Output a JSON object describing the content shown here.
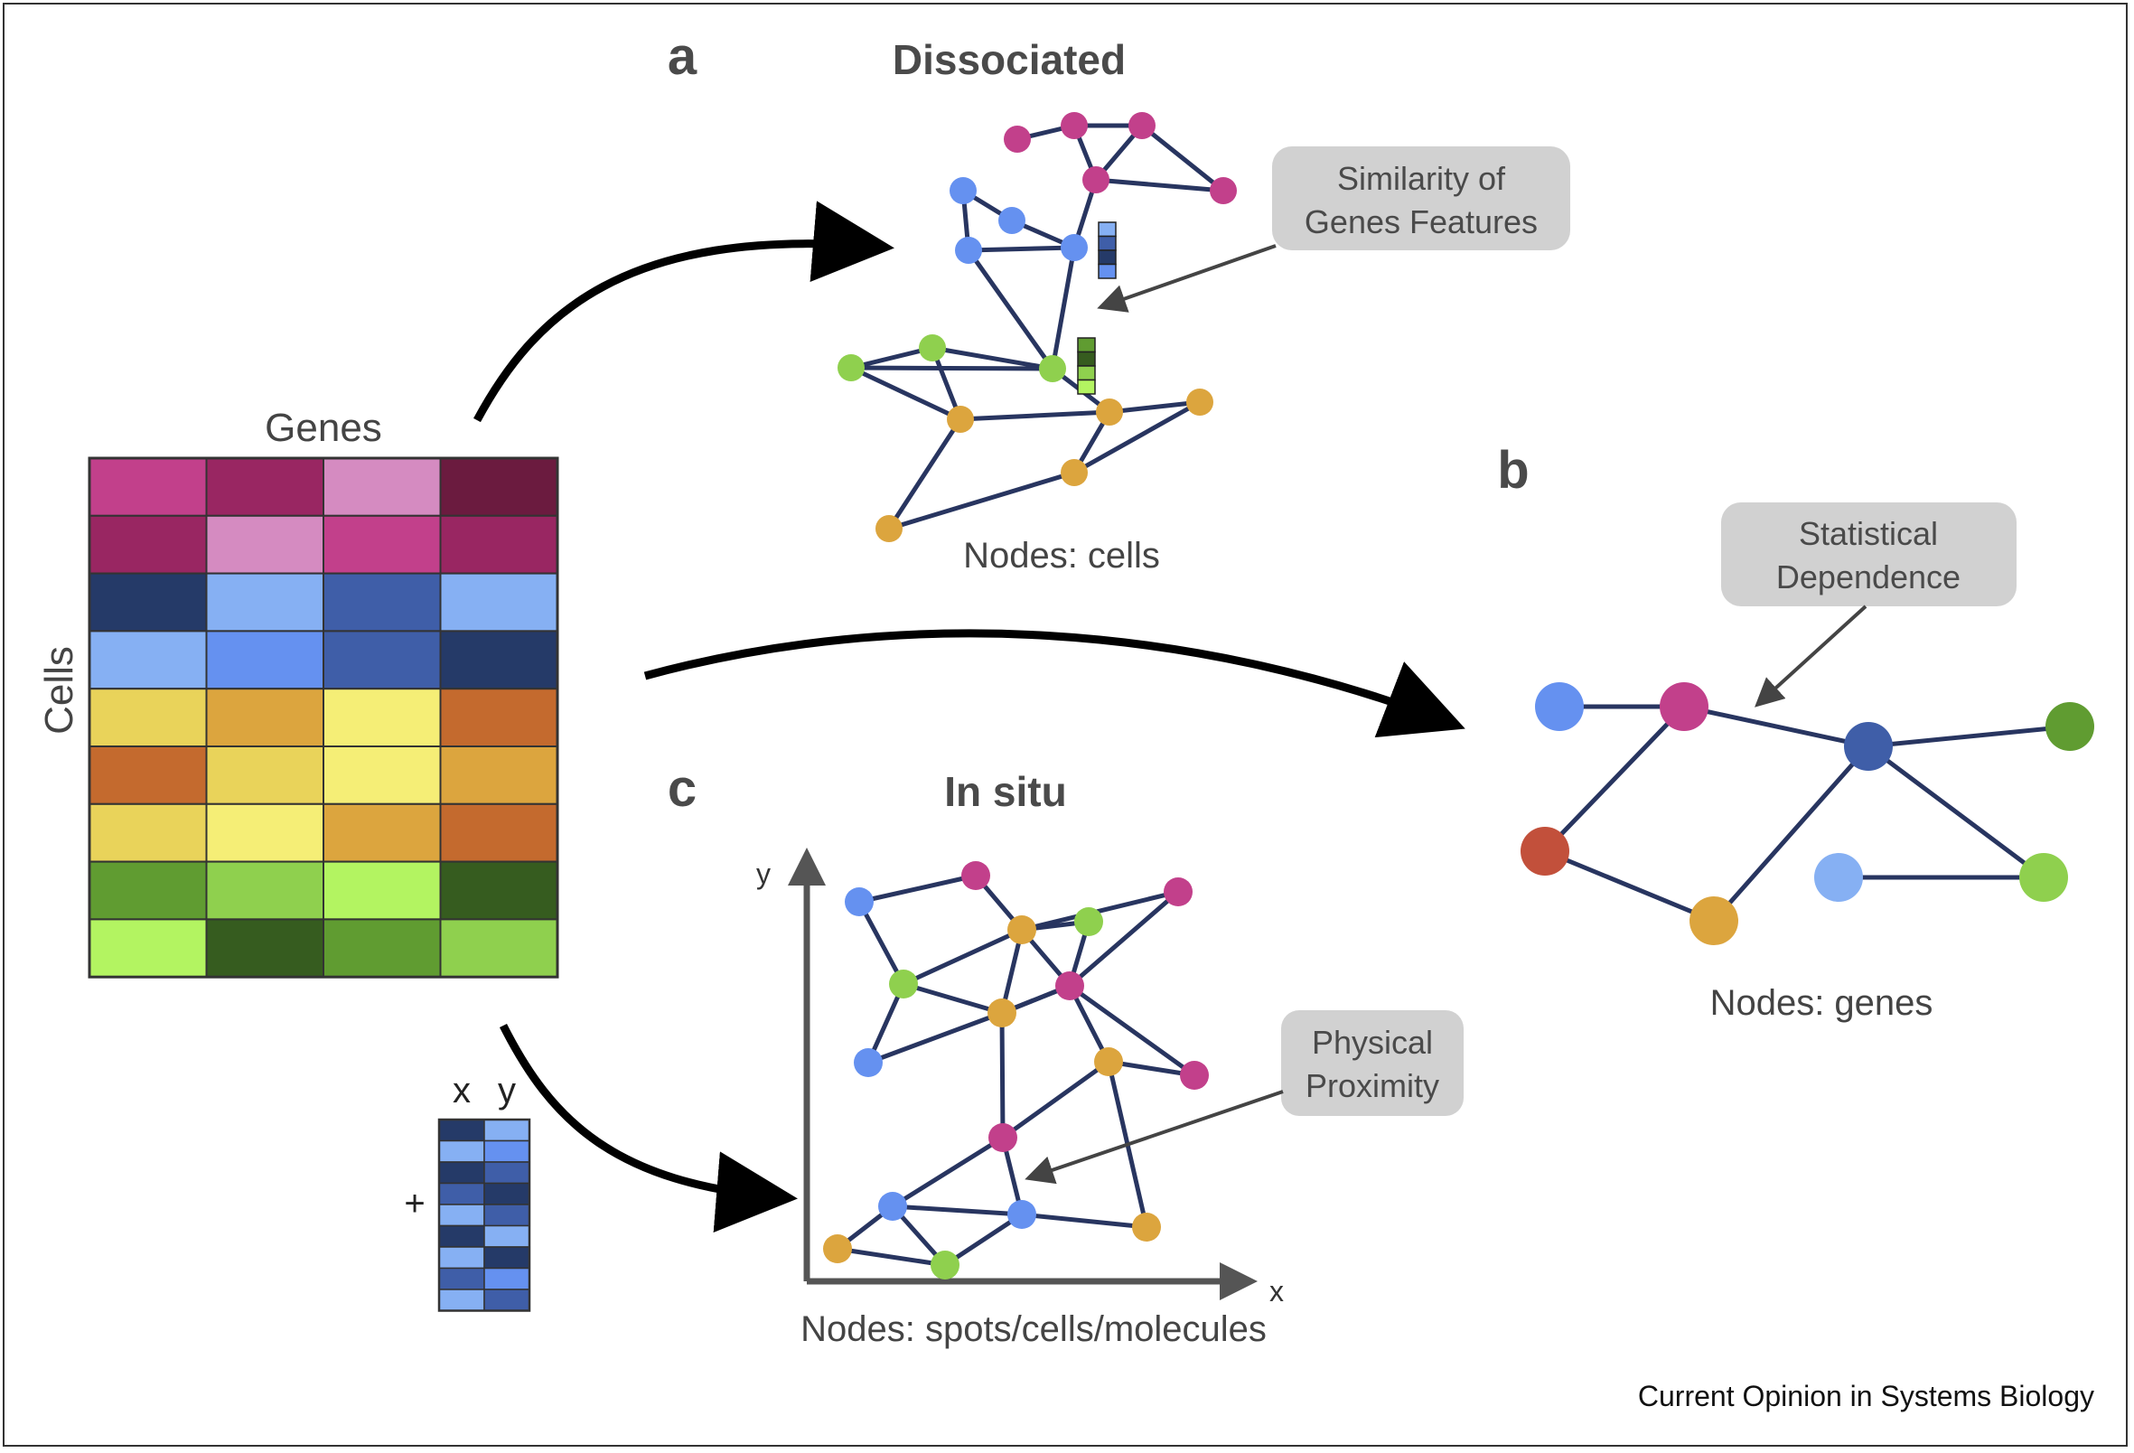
{
  "figure": {
    "credit": "Current Opinion in Systems Biology"
  },
  "matrix": {
    "genes_label": "Genes",
    "cells_label": "Cells",
    "rows": [
      [
        "#c2408b",
        "#992662",
        "#d58bc1",
        "#6b1b3f"
      ],
      [
        "#992662",
        "#d58bc1",
        "#c2408b",
        "#992662"
      ],
      [
        "#253a68",
        "#86b0f3",
        "#3f5ea8",
        "#86b0f3"
      ],
      [
        "#86b0f3",
        "#6591f0",
        "#3f5ea8",
        "#253a68"
      ],
      [
        "#e9d35a",
        "#dca53e",
        "#f5ee76",
        "#c46a2e"
      ],
      [
        "#c46a2e",
        "#e9d35a",
        "#f5ee76",
        "#dca53e"
      ],
      [
        "#e9d35a",
        "#f5ee76",
        "#dca53e",
        "#c46a2e"
      ],
      [
        "#609c31",
        "#8fd04e",
        "#b3f461",
        "#365c1f"
      ],
      [
        "#b3f461",
        "#365c1f",
        "#609c31",
        "#8fd04e"
      ]
    ],
    "xy_header": [
      "x",
      "y"
    ],
    "plus": "+",
    "xy_rows": [
      [
        "#253a68",
        "#86b0f3"
      ],
      [
        "#86b0f3",
        "#6591f0"
      ],
      [
        "#253a68",
        "#3f5ea8"
      ],
      [
        "#3f5ea8",
        "#253a68"
      ],
      [
        "#86b0f3",
        "#3f5ea8"
      ],
      [
        "#253a68",
        "#86b0f3"
      ],
      [
        "#86b0f3",
        "#253a68"
      ],
      [
        "#3f5ea8",
        "#6591f0"
      ],
      [
        "#86b0f3",
        "#3f5ea8"
      ]
    ]
  },
  "panel_a": {
    "letter": "a",
    "title": "Dissociated",
    "caption": "Nodes: cells",
    "callout": [
      "Similarity of",
      "Genes Features"
    ],
    "feature_vectors": [
      [
        "#86b0f3",
        "#3f5ea8",
        "#253a68",
        "#6591f0"
      ],
      [
        "#609c31",
        "#365c1f",
        "#8fd04e",
        "#b3f461"
      ]
    ]
  },
  "panel_b": {
    "letter": "b",
    "caption": "Nodes: genes",
    "callout": [
      "Statistical",
      "Dependence"
    ]
  },
  "panel_c": {
    "letter": "c",
    "title": "In situ",
    "caption": "Nodes: spots/cells/molecules",
    "callout": [
      "Physical",
      "Proximity"
    ],
    "x_axis_label": "x",
    "y_axis_label": "y"
  },
  "colors": {
    "edge": "#283560",
    "callout_fill": "#d1d1d1",
    "callout_text": "#4a4a4a",
    "magenta": "#c2408b",
    "blue": "#6591f0",
    "green": "#8fd04e",
    "orange": "#dca53e"
  }
}
